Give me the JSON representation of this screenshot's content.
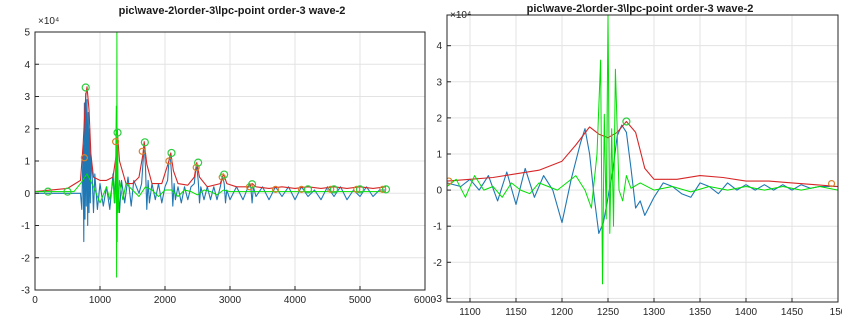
{
  "chart_data": [
    {
      "type": "line",
      "title": "pic\\wave-2\\order-3\\lpc-point order-3 wave-2",
      "xlabel": "",
      "ylabel": "",
      "y_exponent": "×10⁴",
      "xlim": [
        0,
        6000
      ],
      "ylim": [
        -3,
        5
      ],
      "x_ticks": [
        "0",
        "1000",
        "2000",
        "3000",
        "4000",
        "5000",
        "6000"
      ],
      "y_ticks": [
        "-3",
        "-2",
        "-1",
        "0",
        "1",
        "2",
        "3",
        "4",
        "5"
      ],
      "grid": true,
      "colors": {
        "signal": "#1f77b4",
        "envelope": "#d62728",
        "residual": "#00e000",
        "marker_green": "#2ecc40",
        "marker_orange": "#d9822b"
      },
      "series": [
        {
          "role": "signal",
          "x": [
            0,
            700,
            720,
            740,
            750,
            760,
            770,
            780,
            790,
            800,
            810,
            820,
            830,
            840,
            850,
            860,
            880,
            900,
            920,
            960,
            1000,
            1050,
            1100,
            1150,
            1200,
            1230,
            1250,
            1260,
            1270,
            1280,
            1300,
            1330,
            1380,
            1430,
            1480,
            1520,
            1600,
            1640,
            1660,
            1680,
            1700,
            1720,
            1740,
            1760,
            1800,
            1850,
            1900,
            1950,
            2000,
            2040,
            2060,
            2080,
            2100,
            2120,
            2140,
            2160,
            2200,
            2250,
            2300,
            2350,
            2400,
            2450,
            2470,
            2490,
            2510,
            2530,
            2550,
            2600,
            2650,
            2700,
            2750,
            2800,
            2850,
            2870,
            2890,
            2910,
            2930,
            2950,
            3000,
            3100,
            3200,
            3300,
            3320,
            3340,
            3360,
            3400,
            3500,
            3600,
            3700,
            3800,
            3900,
            4000,
            4100,
            4200,
            4300,
            4400,
            4500,
            4600,
            4700,
            4800,
            4900,
            5000,
            5100,
            5200,
            5300,
            5400
          ],
          "y": [
            0,
            0,
            -0.5,
            1.5,
            -1.5,
            2.8,
            -0.8,
            3.1,
            -0.4,
            2.9,
            -1.0,
            2.5,
            -0.6,
            2.0,
            -0.3,
            1.2,
            0.5,
            -0.6,
            0.6,
            -0.5,
            0.3,
            -0.4,
            0.2,
            -0.5,
            0.6,
            -0.3,
            1.0,
            1.7,
            1.0,
            0.2,
            -0.6,
            0.4,
            -0.3,
            0.5,
            -0.4,
            0.4,
            0.0,
            0.3,
            0.9,
            1.5,
            0.8,
            -0.5,
            0.4,
            -0.3,
            0.3,
            -0.2,
            0.3,
            -0.3,
            0.2,
            0.4,
            1.0,
            1.2,
            0.6,
            -0.4,
            0.3,
            -0.2,
            0.2,
            -0.3,
            0.2,
            -0.2,
            0.2,
            0.3,
            0.7,
            0.8,
            0.4,
            -0.3,
            0.2,
            -0.2,
            0.2,
            -0.2,
            0.2,
            -0.2,
            0.2,
            0.4,
            0.5,
            0.3,
            -0.3,
            0.1,
            -0.2,
            0.2,
            -0.2,
            0.3,
            0.2,
            -0.3,
            0.2,
            -0.1,
            0.2,
            -0.2,
            0.2,
            -0.1,
            0.2,
            -0.2,
            0.2,
            -0.1,
            0.1,
            -0.2,
            0.2,
            -0.1,
            0.2,
            -0.2,
            0.1,
            -0.1,
            0.2,
            -0.1,
            0.1,
            0.1
          ]
        },
        {
          "role": "envelope",
          "x": [
            0,
            500,
            700,
            740,
            780,
            800,
            830,
            860,
            900,
            1000,
            1100,
            1200,
            1250,
            1270,
            1300,
            1400,
            1500,
            1600,
            1660,
            1680,
            1720,
            1800,
            1950,
            2060,
            2090,
            2130,
            2200,
            2350,
            2450,
            2490,
            2530,
            2650,
            2850,
            2900,
            2950,
            3100,
            3300,
            3340,
            3400,
            3600,
            3800,
            4000,
            4200,
            4400,
            4600,
            4800,
            5000,
            5200,
            5400
          ],
          "y": [
            0.05,
            0.15,
            0.4,
            1.5,
            3.0,
            3.3,
            2.6,
            1.2,
            0.5,
            0.4,
            0.4,
            0.5,
            1.2,
            1.85,
            1.0,
            0.3,
            0.3,
            0.5,
            1.2,
            1.6,
            0.9,
            0.3,
            0.3,
            1.0,
            1.25,
            0.7,
            0.3,
            0.25,
            0.5,
            0.95,
            0.5,
            0.2,
            0.3,
            0.6,
            0.3,
            0.2,
            0.2,
            0.3,
            0.2,
            0.15,
            0.2,
            0.15,
            0.2,
            0.15,
            0.2,
            0.15,
            0.2,
            0.15,
            0.2
          ]
        },
        {
          "role": "residual",
          "x": [
            0,
            600,
            700,
            800,
            900,
            1000,
            1100,
            1150,
            1200,
            1220,
            1240,
            1250,
            1255,
            1260,
            1265,
            1270,
            1280,
            1300,
            1350,
            1400,
            1500,
            1600,
            1700,
            1800,
            1900,
            2000,
            2100,
            2200,
            2300,
            2400,
            2500,
            2600,
            2700,
            2800,
            2900,
            3000,
            3200,
            3400,
            3600,
            3800,
            4000,
            4200,
            4400,
            4600,
            4800,
            5000,
            5200,
            5400
          ],
          "y": [
            0.05,
            0.05,
            0.3,
            0.6,
            0.2,
            -0.3,
            0.2,
            -0.2,
            0.4,
            -0.3,
            0.8,
            2.7,
            -2.6,
            5.2,
            -1.5,
            2.0,
            -0.6,
            0.4,
            -0.2,
            0.3,
            0.1,
            -0.1,
            0.2,
            0.1,
            -0.1,
            0.1,
            0.1,
            -0.1,
            0.1,
            0.05,
            -0.05,
            0.1,
            0.05,
            -0.05,
            0.1,
            0.05,
            0.05,
            0.05,
            0.05,
            0.05,
            0.05,
            0.05,
            0.05,
            0.05,
            0.05,
            0.05,
            0.05,
            0.05
          ]
        }
      ],
      "markers_green": {
        "x": [
          200,
          500,
          780,
          1270,
          1690,
          2100,
          2510,
          2910,
          3340,
          4200,
          4600,
          5000,
          5400
        ],
        "y": [
          0.05,
          0.05,
          3.28,
          1.88,
          1.58,
          1.25,
          0.95,
          0.58,
          0.28,
          0.12,
          0.12,
          0.12,
          0.12
        ]
      },
      "markers_orange": {
        "x": [
          760,
          1240,
          1650,
          2060,
          2480,
          2880,
          3300,
          3700,
          4100,
          4550,
          4950,
          5350
        ],
        "y": [
          1.1,
          1.6,
          1.3,
          1.0,
          0.8,
          0.5,
          0.2,
          0.12,
          0.12,
          0.12,
          0.12,
          0.12
        ]
      }
    },
    {
      "type": "line",
      "title": "pic\\wave-2\\order-3\\lpc-point order-3 wave-2",
      "xlabel": "",
      "ylabel": "",
      "y_exponent": "×10⁴",
      "xlim": [
        1075,
        1500
      ],
      "ylim": [
        -3.1,
        4.85
      ],
      "x_ticks": [
        "1100",
        "1150",
        "1200",
        "1250",
        "1300",
        "1350",
        "1400",
        "1450",
        "150"
      ],
      "y_ticks": [
        "-3",
        "-2",
        "-1",
        "0",
        "1",
        "2",
        "3",
        "4"
      ],
      "grid": true,
      "series": [
        {
          "role": "signal",
          "x": [
            1075,
            1090,
            1100,
            1110,
            1120,
            1130,
            1140,
            1150,
            1160,
            1170,
            1180,
            1190,
            1200,
            1210,
            1220,
            1225,
            1230,
            1235,
            1240,
            1245,
            1250,
            1255,
            1260,
            1265,
            1270,
            1275,
            1280,
            1285,
            1290,
            1300,
            1310,
            1320,
            1330,
            1340,
            1350,
            1360,
            1370,
            1380,
            1390,
            1400,
            1410,
            1420,
            1430,
            1440,
            1450,
            1460,
            1470,
            1480,
            1490,
            1500
          ],
          "y": [
            0.2,
            0.1,
            0.3,
            0.0,
            0.4,
            -0.3,
            0.5,
            -0.4,
            0.6,
            -0.2,
            0.4,
            0.0,
            -0.9,
            0.3,
            1.3,
            1.7,
            1.0,
            -0.2,
            -1.2,
            -0.9,
            -0.2,
            0.5,
            1.5,
            1.8,
            1.6,
            0.6,
            -0.5,
            -0.3,
            -0.7,
            -0.2,
            0.2,
            0.1,
            -0.1,
            -0.2,
            0.2,
            0.1,
            -0.1,
            0.2,
            0.0,
            0.15,
            0.0,
            0.15,
            0.0,
            0.15,
            0.0,
            0.15,
            0.05,
            0.1,
            0.1,
            0.1
          ]
        },
        {
          "role": "envelope",
          "x": [
            1075,
            1100,
            1125,
            1150,
            1175,
            1200,
            1215,
            1230,
            1240,
            1250,
            1260,
            1270,
            1280,
            1290,
            1300,
            1325,
            1350,
            1375,
            1400,
            1425,
            1450,
            1475,
            1500
          ],
          "y": [
            0.25,
            0.3,
            0.35,
            0.45,
            0.55,
            0.8,
            1.25,
            1.75,
            1.55,
            1.45,
            1.6,
            1.9,
            1.6,
            0.6,
            0.3,
            0.3,
            0.4,
            0.35,
            0.25,
            0.25,
            0.2,
            0.15,
            0.1
          ]
        },
        {
          "role": "residual",
          "x": [
            1075,
            1085,
            1095,
            1105,
            1115,
            1125,
            1135,
            1145,
            1155,
            1165,
            1175,
            1185,
            1195,
            1205,
            1215,
            1225,
            1232,
            1238,
            1242,
            1244,
            1246,
            1248,
            1250,
            1252,
            1254,
            1256,
            1258,
            1262,
            1266,
            1270,
            1275,
            1285,
            1300,
            1320,
            1340,
            1360,
            1380,
            1400,
            1420,
            1440,
            1460,
            1480,
            1500
          ],
          "y": [
            0.1,
            0.3,
            -0.2,
            0.4,
            0.0,
            0.1,
            -0.2,
            0.2,
            0.0,
            -0.1,
            0.2,
            0.1,
            0.0,
            0.2,
            0.4,
            0.0,
            -0.5,
            1.0,
            3.6,
            -2.6,
            2.1,
            -0.8,
            4.85,
            -1.2,
            1.7,
            -1.0,
            3.35,
            0.0,
            -0.3,
            0.4,
            0.05,
            0.2,
            0.0,
            0.1,
            -0.05,
            0.1,
            0.0,
            0.1,
            0.0,
            0.1,
            0.0,
            0.1,
            0.0
          ]
        }
      ],
      "markers_green": {
        "x": [
          1270
        ],
        "y": [
          1.9
        ]
      },
      "markers_orange": {
        "x": [
          1077,
          1493
        ],
        "y": [
          0.25,
          0.18
        ]
      }
    }
  ]
}
